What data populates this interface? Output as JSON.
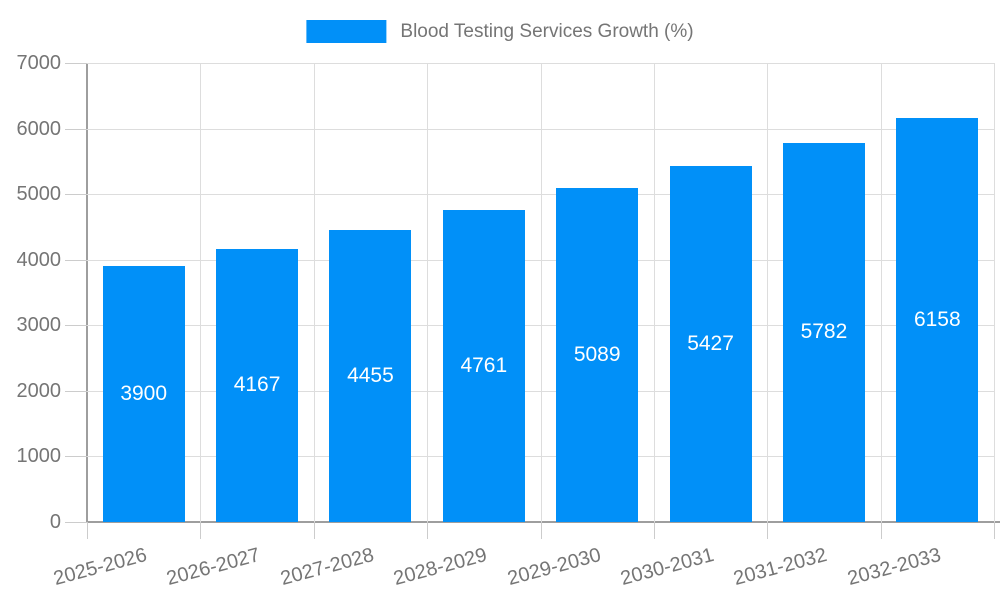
{
  "chart_data": {
    "type": "bar",
    "series_name": "Blood Testing Services Growth (%)",
    "categories": [
      "2025-2026",
      "2026-2027",
      "2027-2028",
      "2028-2029",
      "2029-2030",
      "2030-2031",
      "2031-2032",
      "2032-2033"
    ],
    "values": [
      3900,
      4167,
      4455,
      4761,
      5089,
      5427,
      5782,
      6158
    ],
    "title": "",
    "xlabel": "",
    "ylabel": "",
    "ylim": [
      0,
      7000
    ],
    "ytick_step": 1000,
    "grid": true,
    "legend_position": "top-center",
    "x_tick_label_rotation_deg": -15,
    "bar_color": "#0190F8",
    "value_label_color": "#FFFFFF",
    "axis_text_color": "#757575",
    "gridline_color": "#DDDDDD",
    "axis_line_color": "#9E9E9E",
    "tick_color": "#CCCCCC",
    "background_color": "#FFFFFF"
  }
}
